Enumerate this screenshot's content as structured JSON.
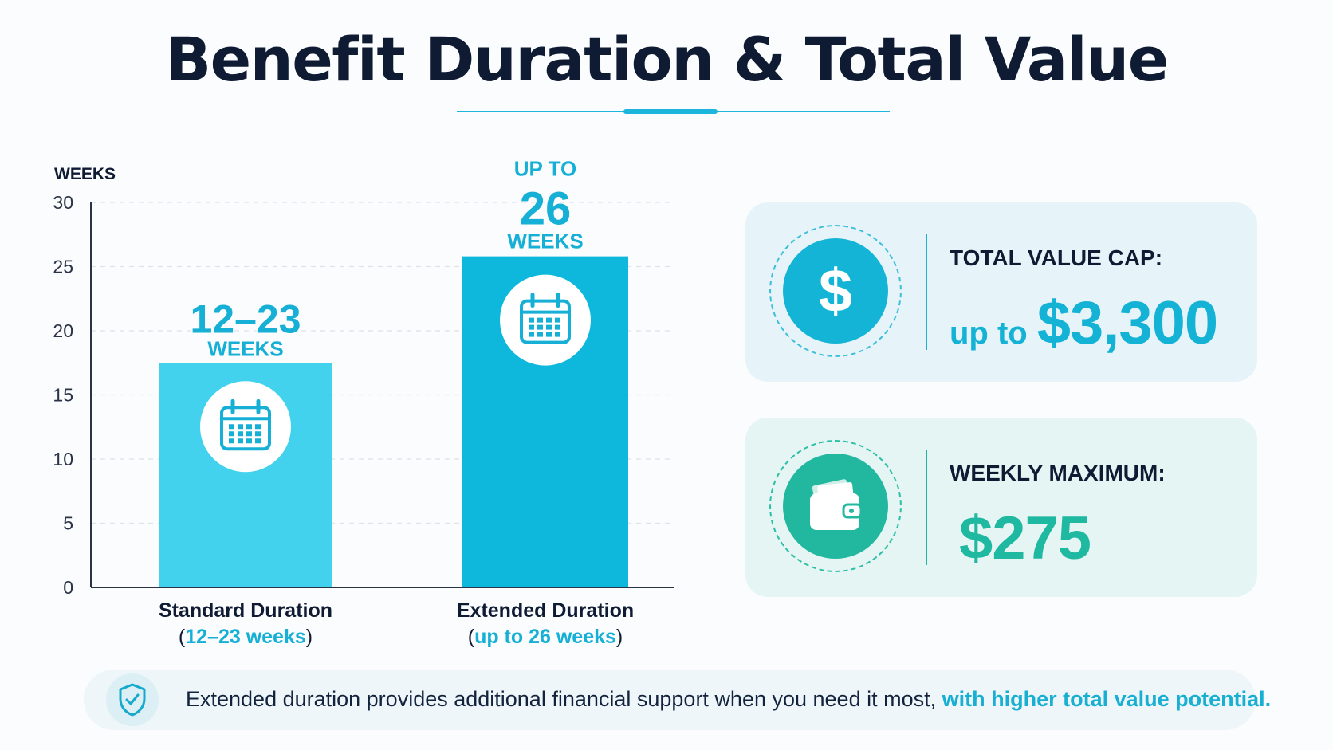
{
  "title": "Benefit Duration & Total Value",
  "chart_data": {
    "type": "bar",
    "ylabel": "WEEKS",
    "ylim": [
      0,
      30
    ],
    "yticks": [
      0,
      5,
      10,
      15,
      20,
      25,
      30
    ],
    "grid": true,
    "categories": [
      {
        "label": "Standard Duration",
        "sublabel_open": "(",
        "sublabel_value": "12–23 weeks",
        "sublabel_close": ")"
      },
      {
        "label": "Extended Duration",
        "sublabel_open": "(",
        "sublabel_value": "up to 26 weeks",
        "sublabel_close": ")"
      }
    ],
    "values": [
      17.5,
      25.8
    ],
    "data_labels": [
      {
        "lines": [
          "12–23",
          "WEEKS"
        ]
      },
      {
        "lines": [
          "UP TO",
          "26",
          "WEEKS"
        ]
      }
    ],
    "colors": [
      "#42d2ee",
      "#0eb8dc"
    ],
    "label_color": "#16b0d6"
  },
  "cards": [
    {
      "label": "TOTAL VALUE CAP:",
      "value_prefix": "up to",
      "value": "$3,300",
      "icon": "dollar-icon",
      "color": "#13b4d6"
    },
    {
      "label": "WEEKLY MAXIMUM:",
      "value_prefix": "",
      "value": "$275",
      "icon": "wallet-icon",
      "color": "#22b8a0"
    }
  ],
  "note": {
    "icon": "shield-check-icon",
    "text": "Extended duration provides additional financial support when you need it most,",
    "highlight": "with higher total value potential."
  }
}
